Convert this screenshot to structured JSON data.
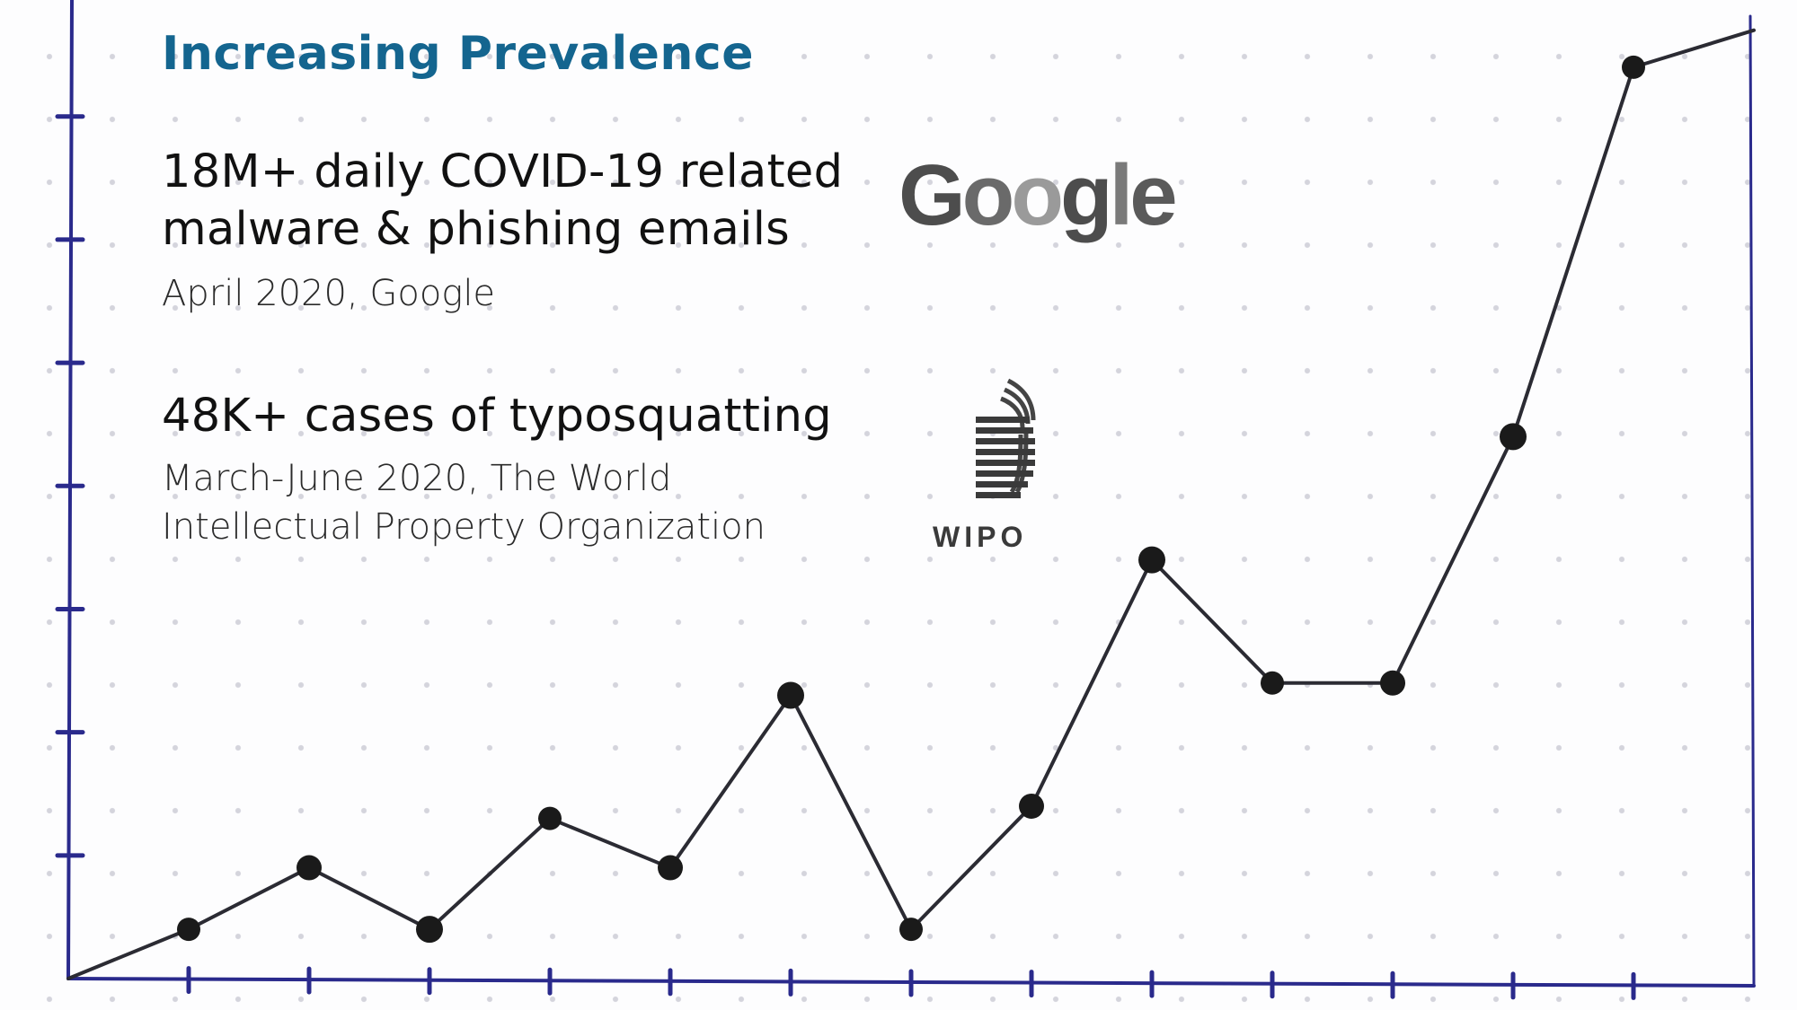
{
  "title": "Increasing Prevalence",
  "stats": [
    {
      "headline": "18M+ daily COVID-19 related\nmalware & phishing emails",
      "source": "April 2020, Google"
    },
    {
      "headline": "48K+ cases of typosquatting",
      "source": "March-June 2020, The World\nIntellectual Property Organization"
    }
  ],
  "logos": {
    "google": "Google",
    "wipo": "WIPO"
  },
  "colors": {
    "title": "#14658f",
    "axis": "#2a2a8c",
    "line": "#2b2b33",
    "point": "#1a1a1a"
  },
  "chart_data": {
    "type": "line",
    "title": "",
    "xlabel": "",
    "ylabel": "",
    "x": [
      0,
      1,
      2,
      3,
      4,
      5,
      6,
      7,
      8,
      9,
      10,
      11,
      12,
      13,
      14
    ],
    "series": [
      {
        "values": [
          0,
          0.4,
          0.9,
          0.4,
          1.3,
          0.9,
          2.3,
          0.4,
          1.4,
          3.4,
          2.4,
          2.4,
          4.4,
          7.4,
          7.7
        ]
      }
    ],
    "xlim": [
      0,
      14
    ],
    "ylim": [
      0,
      7.8
    ],
    "x_ticks": [
      1,
      2,
      3,
      4,
      5,
      6,
      7,
      8,
      9,
      10,
      11,
      12,
      13
    ],
    "y_ticks": [
      1,
      2,
      3,
      4,
      5,
      6,
      7
    ],
    "grid": false,
    "legend": "none",
    "markers": [
      false,
      true,
      true,
      true,
      true,
      true,
      true,
      true,
      true,
      true,
      true,
      true,
      true,
      true,
      false
    ]
  }
}
